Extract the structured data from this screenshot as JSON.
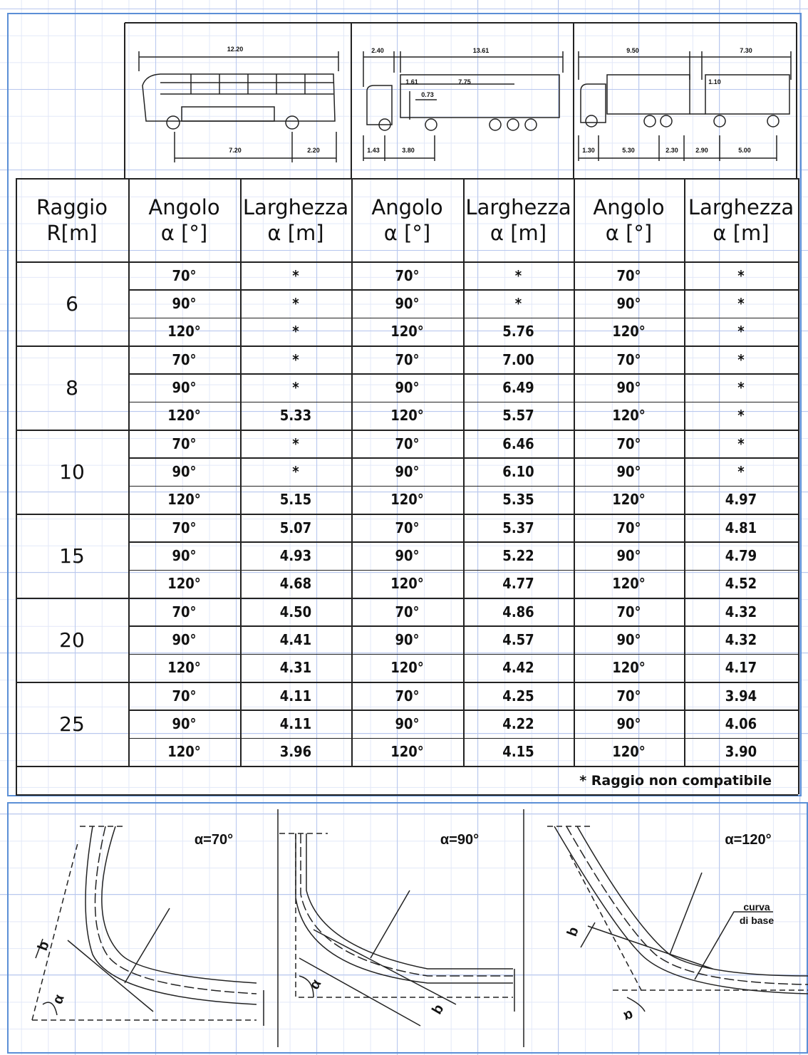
{
  "vehicles": [
    {
      "dimensions": [
        "12.20",
        "7.20",
        "2.20"
      ]
    },
    {
      "dimensions": [
        "2.40",
        "13.61",
        "1.61",
        "7.75",
        "0.73",
        "1.43",
        "3.80"
      ]
    },
    {
      "dimensions": [
        "9.50",
        "7.30",
        "1.10",
        "1.30",
        "5.30",
        "2.30",
        "2.90",
        "5.00"
      ]
    }
  ],
  "table": {
    "headers": [
      [
        "Raggio",
        "R[m]"
      ],
      [
        "Angolo",
        "α [°]"
      ],
      [
        "Larghezza",
        "α [m]"
      ],
      [
        "Angolo",
        "α [°]"
      ],
      [
        "Larghezza",
        "α [m]"
      ],
      [
        "Angolo",
        "α [°]"
      ],
      [
        "Larghezza",
        "α [m]"
      ]
    ],
    "rows": [
      {
        "radius": "6",
        "entries": [
          [
            "70°",
            "*",
            "70°",
            "*",
            "70°",
            "*"
          ],
          [
            "90°",
            "*",
            "90°",
            "*",
            "90°",
            "*"
          ],
          [
            "120°",
            "*",
            "120°",
            "5.76",
            "120°",
            "*"
          ]
        ]
      },
      {
        "radius": "8",
        "entries": [
          [
            "70°",
            "*",
            "70°",
            "7.00",
            "70°",
            "*"
          ],
          [
            "90°",
            "*",
            "90°",
            "6.49",
            "90°",
            "*"
          ],
          [
            "120°",
            "5.33",
            "120°",
            "5.57",
            "120°",
            "*"
          ]
        ]
      },
      {
        "radius": "10",
        "entries": [
          [
            "70°",
            "*",
            "70°",
            "6.46",
            "70°",
            "*"
          ],
          [
            "90°",
            "*",
            "90°",
            "6.10",
            "90°",
            "*"
          ],
          [
            "120°",
            "5.15",
            "120°",
            "5.35",
            "120°",
            "4.97"
          ]
        ]
      },
      {
        "radius": "15",
        "entries": [
          [
            "70°",
            "5.07",
            "70°",
            "5.37",
            "70°",
            "4.81"
          ],
          [
            "90°",
            "4.93",
            "90°",
            "5.22",
            "90°",
            "4.79"
          ],
          [
            "120°",
            "4.68",
            "120°",
            "4.77",
            "120°",
            "4.52"
          ]
        ]
      },
      {
        "radius": "20",
        "entries": [
          [
            "70°",
            "4.50",
            "70°",
            "4.86",
            "70°",
            "4.32"
          ],
          [
            "90°",
            "4.41",
            "90°",
            "4.57",
            "90°",
            "4.32"
          ],
          [
            "120°",
            "4.31",
            "120°",
            "4.42",
            "120°",
            "4.17"
          ]
        ]
      },
      {
        "radius": "25",
        "entries": [
          [
            "70°",
            "4.11",
            "70°",
            "4.25",
            "70°",
            "3.94"
          ],
          [
            "90°",
            "4.11",
            "90°",
            "4.22",
            "90°",
            "4.06"
          ],
          [
            "120°",
            "3.96",
            "120°",
            "4.15",
            "120°",
            "3.90"
          ]
        ]
      }
    ],
    "footnote": "* Raggio non compatibile"
  },
  "diagrams": [
    {
      "label": "α=70°",
      "b": "b",
      "alpha": "α"
    },
    {
      "label": "α=90°",
      "b": "b",
      "alpha": "α"
    },
    {
      "label": "α=120°",
      "b": "b",
      "alpha": "α",
      "note": [
        "curva",
        "di base"
      ]
    }
  ]
}
